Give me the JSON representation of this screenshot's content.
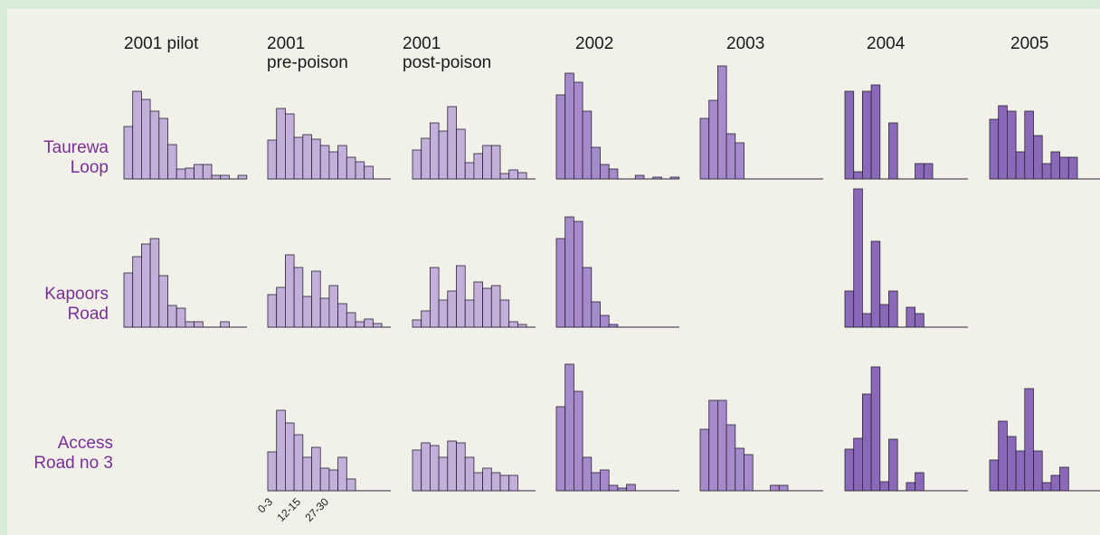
{
  "chart_data": {
    "type": "bar",
    "columns": [
      "2001 pilot",
      "2001\npre-poison",
      "2001\npost-poison",
      "2002",
      "2003",
      "2004",
      "2005"
    ],
    "rows": [
      "Taurewa\nLoop",
      "Kapoors\nRoad",
      "Access\nRoad no 3"
    ],
    "x_tick_labels": [
      "0-3",
      "12-15",
      "27-30"
    ],
    "colors": {
      "light": "#c2b0db",
      "mid": "#a58bcb",
      "dark": "#8a6ab8",
      "stroke": "#2a2235",
      "row_label": "#7a2f96",
      "panel_bg": "#f1f1ea",
      "page_bg": "#d8ecd8"
    },
    "panels": [
      {
        "row": 0,
        "col": 0,
        "values": [
          58,
          97,
          88,
          75,
          67,
          38,
          11,
          12,
          16,
          16,
          4,
          4,
          0,
          4
        ]
      },
      {
        "row": 0,
        "col": 1,
        "values": [
          43,
          78,
          72,
          46,
          49,
          44,
          37,
          30,
          37,
          24,
          19,
          14,
          0,
          0
        ]
      },
      {
        "row": 0,
        "col": 2,
        "values": [
          32,
          45,
          62,
          53,
          80,
          55,
          18,
          28,
          37,
          37,
          6,
          10,
          7,
          0
        ]
      },
      {
        "row": 0,
        "col": 3,
        "values": [
          93,
          117,
          107,
          75,
          35,
          16,
          11,
          0,
          0,
          4,
          0,
          2,
          0,
          2
        ]
      },
      {
        "row": 0,
        "col": 4,
        "values": [
          67,
          87,
          125,
          50,
          40,
          0,
          0,
          0,
          0,
          0,
          0,
          0,
          0,
          0
        ]
      },
      {
        "row": 0,
        "col": 5,
        "values": [
          97,
          8,
          97,
          104,
          0,
          62,
          0,
          0,
          17,
          17,
          0,
          0,
          0,
          0
        ]
      },
      {
        "row": 0,
        "col": 6,
        "values": [
          66,
          81,
          75,
          30,
          75,
          48,
          17,
          30,
          24,
          24,
          0,
          0,
          0,
          0
        ]
      },
      {
        "row": 1,
        "col": 0,
        "values": [
          60,
          78,
          92,
          98,
          57,
          24,
          21,
          6,
          6,
          0,
          0,
          6,
          0,
          0
        ]
      },
      {
        "row": 1,
        "col": 1,
        "values": [
          36,
          44,
          80,
          66,
          34,
          62,
          32,
          46,
          26,
          16,
          6,
          9,
          4,
          0
        ]
      },
      {
        "row": 1,
        "col": 2,
        "values": [
          8,
          18,
          66,
          30,
          40,
          68,
          30,
          50,
          43,
          46,
          30,
          6,
          3,
          0
        ]
      },
      {
        "row": 1,
        "col": 3,
        "values": [
          98,
          122,
          117,
          66,
          28,
          13,
          3,
          0,
          0,
          0,
          0,
          0,
          0,
          0
        ]
      },
      {
        "row": 1,
        "col": 5,
        "values": [
          40,
          153,
          15,
          95,
          25,
          40,
          0,
          22,
          15,
          0,
          0,
          0,
          0,
          0
        ]
      },
      {
        "row": 2,
        "col": 1,
        "values": [
          43,
          89,
          75,
          62,
          37,
          48,
          25,
          23,
          37,
          13,
          0,
          0,
          0,
          0
        ]
      },
      {
        "row": 2,
        "col": 2,
        "values": [
          45,
          53,
          50,
          37,
          55,
          53,
          37,
          20,
          25,
          20,
          17,
          17,
          0,
          0
        ]
      },
      {
        "row": 2,
        "col": 3,
        "values": [
          93,
          140,
          110,
          37,
          20,
          23,
          6,
          3,
          7,
          0,
          0,
          0,
          0,
          0
        ]
      },
      {
        "row": 2,
        "col": 4,
        "values": [
          68,
          100,
          100,
          73,
          47,
          40,
          0,
          0,
          6,
          6,
          0,
          0,
          0,
          0
        ]
      },
      {
        "row": 2,
        "col": 5,
        "values": [
          46,
          58,
          107,
          137,
          10,
          57,
          0,
          9,
          20,
          0,
          0,
          0,
          0,
          0
        ]
      },
      {
        "row": 2,
        "col": 6,
        "values": [
          34,
          77,
          60,
          44,
          113,
          44,
          9,
          17,
          26,
          0,
          0,
          0,
          0,
          0
        ]
      }
    ]
  }
}
